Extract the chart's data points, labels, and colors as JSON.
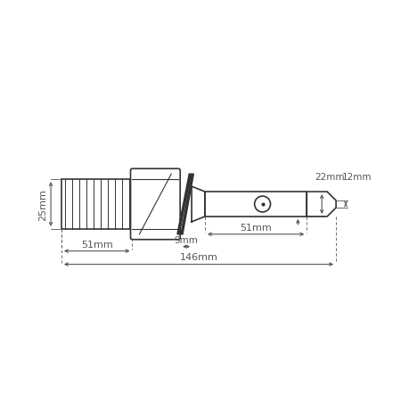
{
  "bg_color": "#ffffff",
  "line_color": "#333333",
  "dim_color": "#555555",
  "fig_width": 4.6,
  "fig_height": 4.6,
  "dpi": 100,
  "title": "",
  "dimensions": {
    "total_length": "146mm",
    "thread_length": "51mm",
    "gap": "9mm",
    "shaft_length": "51mm",
    "nut_height": "25mm",
    "pin_diameter": "22mm",
    "tip_length": "12mm"
  }
}
